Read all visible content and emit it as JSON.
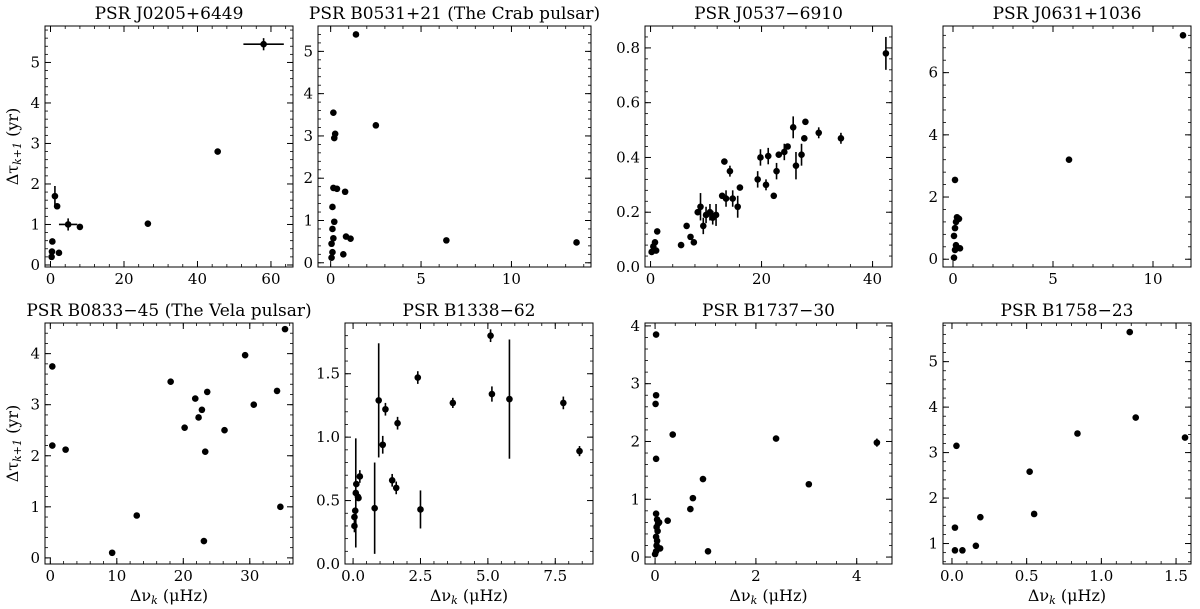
{
  "chart_data": [
    {
      "type": "scatter",
      "title": "PSR J0205+6449",
      "xlabel": "",
      "ylabel": "Δτ_{k+1} (yr)",
      "xlim": [
        -1.5,
        66
      ],
      "ylim": [
        -0.05,
        5.9
      ],
      "xticks": [
        0,
        20,
        40,
        60
      ],
      "xtick_labels": [
        "0",
        "20",
        "40",
        "60"
      ],
      "yticks": [
        0,
        1,
        2,
        3,
        4,
        5
      ],
      "ytick_labels": [
        "0",
        "1",
        "2",
        "3",
        "4",
        "5"
      ],
      "points": [
        {
          "x": 0.3,
          "y": 0.2
        },
        {
          "x": 0.4,
          "y": 0.33
        },
        {
          "x": 0.5,
          "y": 0.58
        },
        {
          "x": 1.2,
          "y": 1.7,
          "yerr": 0.25
        },
        {
          "x": 1.8,
          "y": 1.45
        },
        {
          "x": 2.3,
          "y": 0.3
        },
        {
          "x": 4.8,
          "y": 1.0,
          "xerr": 2.5,
          "yerr": 0.15
        },
        {
          "x": 8.0,
          "y": 0.94
        },
        {
          "x": 26.5,
          "y": 1.02
        },
        {
          "x": 45.5,
          "y": 2.8
        },
        {
          "x": 58.0,
          "y": 5.45,
          "xerr": 5.5,
          "yerr": 0.15
        }
      ]
    },
    {
      "type": "scatter",
      "title": "PSR B0531+21 (The Crab pulsar)",
      "xlabel": "",
      "ylabel": "",
      "xlim": [
        -0.7,
        14.4
      ],
      "ylim": [
        -0.1,
        5.6
      ],
      "xticks": [
        0,
        5,
        10
      ],
      "xtick_labels": [
        "0",
        "5",
        "10"
      ],
      "yticks": [
        0,
        1,
        2,
        3,
        4,
        5
      ],
      "ytick_labels": [
        "0",
        "1",
        "2",
        "3",
        "4",
        "5"
      ],
      "points": [
        {
          "x": 0.05,
          "y": 0.12
        },
        {
          "x": 0.1,
          "y": 0.25
        },
        {
          "x": 0.05,
          "y": 0.45
        },
        {
          "x": 0.15,
          "y": 0.58
        },
        {
          "x": 0.1,
          "y": 0.8
        },
        {
          "x": 0.2,
          "y": 0.97
        },
        {
          "x": 0.1,
          "y": 1.32
        },
        {
          "x": 0.15,
          "y": 1.77
        },
        {
          "x": 0.35,
          "y": 1.75
        },
        {
          "x": 0.2,
          "y": 2.95
        },
        {
          "x": 0.25,
          "y": 3.05
        },
        {
          "x": 0.15,
          "y": 3.55
        },
        {
          "x": 0.7,
          "y": 0.2
        },
        {
          "x": 0.8,
          "y": 1.68
        },
        {
          "x": 0.85,
          "y": 0.62
        },
        {
          "x": 1.1,
          "y": 0.57
        },
        {
          "x": 1.4,
          "y": 5.4
        },
        {
          "x": 2.5,
          "y": 3.25
        },
        {
          "x": 6.4,
          "y": 0.53
        },
        {
          "x": 13.6,
          "y": 0.48
        }
      ]
    },
    {
      "type": "scatter",
      "title": "PSR J0537−6910",
      "xlabel": "",
      "ylabel": "",
      "xlim": [
        -1,
        43.5
      ],
      "ylim": [
        0,
        0.88
      ],
      "xticks": [
        0,
        20,
        40
      ],
      "xtick_labels": [
        "0",
        "20",
        "40"
      ],
      "yticks": [
        0,
        0.2,
        0.4,
        0.6,
        0.8
      ],
      "ytick_labels": [
        "0.0",
        "0.2",
        "0.4",
        "0.6",
        "0.8"
      ],
      "points": [
        {
          "x": 0.2,
          "y": 0.055
        },
        {
          "x": 0.5,
          "y": 0.075
        },
        {
          "x": 0.8,
          "y": 0.09
        },
        {
          "x": 1.0,
          "y": 0.06
        },
        {
          "x": 1.2,
          "y": 0.13
        },
        {
          "x": 5.5,
          "y": 0.08
        },
        {
          "x": 6.5,
          "y": 0.15
        },
        {
          "x": 7.2,
          "y": 0.11
        },
        {
          "x": 7.8,
          "y": 0.09
        },
        {
          "x": 8.5,
          "y": 0.2
        },
        {
          "x": 9.0,
          "y": 0.22,
          "yerr": 0.05
        },
        {
          "x": 9.5,
          "y": 0.15,
          "yerr": 0.03
        },
        {
          "x": 10.0,
          "y": 0.19,
          "yerr": 0.03
        },
        {
          "x": 10.7,
          "y": 0.2,
          "yerr": 0.03
        },
        {
          "x": 11.2,
          "y": 0.18,
          "yerr": 0.025
        },
        {
          "x": 11.8,
          "y": 0.19,
          "yerr": 0.04
        },
        {
          "x": 12.9,
          "y": 0.26
        },
        {
          "x": 13.3,
          "y": 0.385
        },
        {
          "x": 13.6,
          "y": 0.25,
          "yerr": 0.03
        },
        {
          "x": 14.3,
          "y": 0.35,
          "yerr": 0.02
        },
        {
          "x": 14.8,
          "y": 0.25,
          "yerr": 0.03
        },
        {
          "x": 15.7,
          "y": 0.22,
          "yerr": 0.04
        },
        {
          "x": 16.1,
          "y": 0.29
        },
        {
          "x": 19.3,
          "y": 0.32,
          "yerr": 0.03
        },
        {
          "x": 19.8,
          "y": 0.4,
          "yerr": 0.03
        },
        {
          "x": 20.8,
          "y": 0.3,
          "yerr": 0.02
        },
        {
          "x": 21.2,
          "y": 0.405,
          "yerr": 0.03
        },
        {
          "x": 22.2,
          "y": 0.26
        },
        {
          "x": 22.7,
          "y": 0.35,
          "yerr": 0.03
        },
        {
          "x": 23.1,
          "y": 0.41
        },
        {
          "x": 24.1,
          "y": 0.42,
          "yerr": 0.03
        },
        {
          "x": 24.7,
          "y": 0.44
        },
        {
          "x": 25.7,
          "y": 0.51,
          "yerr": 0.04
        },
        {
          "x": 26.2,
          "y": 0.37,
          "yerr": 0.05
        },
        {
          "x": 27.2,
          "y": 0.41,
          "yerr": 0.04
        },
        {
          "x": 27.7,
          "y": 0.47
        },
        {
          "x": 27.9,
          "y": 0.53
        },
        {
          "x": 30.3,
          "y": 0.49,
          "yerr": 0.02
        },
        {
          "x": 34.3,
          "y": 0.47,
          "yerr": 0.02
        },
        {
          "x": 42.4,
          "y": 0.78,
          "yerr": 0.06
        }
      ]
    },
    {
      "type": "scatter",
      "title": "PSR J0631+1036",
      "xlabel": "",
      "ylabel": "",
      "xlim": [
        -0.5,
        11.9
      ],
      "ylim": [
        -0.25,
        7.5
      ],
      "xticks": [
        0,
        5,
        10
      ],
      "xtick_labels": [
        "0",
        "5",
        "10"
      ],
      "yticks": [
        0,
        2,
        4,
        6
      ],
      "ytick_labels": [
        "0",
        "2",
        "4",
        "6"
      ],
      "points": [
        {
          "x": 0.05,
          "y": 0.05
        },
        {
          "x": 0.1,
          "y": 0.3
        },
        {
          "x": 0.15,
          "y": 0.45
        },
        {
          "x": 0.05,
          "y": 0.75
        },
        {
          "x": 0.1,
          "y": 1.0
        },
        {
          "x": 0.15,
          "y": 1.2
        },
        {
          "x": 0.2,
          "y": 1.35
        },
        {
          "x": 0.3,
          "y": 1.3
        },
        {
          "x": 0.35,
          "y": 0.35
        },
        {
          "x": 0.1,
          "y": 2.55
        },
        {
          "x": 5.8,
          "y": 3.2
        },
        {
          "x": 11.5,
          "y": 7.2
        }
      ]
    },
    {
      "type": "scatter",
      "title": "PSR B0833−45 (The Vela pulsar)",
      "xlabel": "Δν_k (μHz)",
      "ylabel": "Δτ_{k+1} (yr)",
      "xlim": [
        -0.8,
        36.5
      ],
      "ylim": [
        -0.12,
        4.6
      ],
      "xticks": [
        0,
        10,
        20,
        30
      ],
      "xtick_labels": [
        "0",
        "10",
        "20",
        "30"
      ],
      "yticks": [
        0,
        1,
        2,
        3,
        4
      ],
      "ytick_labels": [
        "0",
        "1",
        "2",
        "3",
        "4"
      ],
      "points": [
        {
          "x": 0.3,
          "y": 3.75
        },
        {
          "x": 0.3,
          "y": 2.2
        },
        {
          "x": 2.3,
          "y": 2.12
        },
        {
          "x": 9.3,
          "y": 0.1
        },
        {
          "x": 13.0,
          "y": 0.83
        },
        {
          "x": 18.1,
          "y": 3.45
        },
        {
          "x": 20.2,
          "y": 2.55
        },
        {
          "x": 21.8,
          "y": 3.12
        },
        {
          "x": 22.3,
          "y": 2.75
        },
        {
          "x": 22.8,
          "y": 2.9
        },
        {
          "x": 23.1,
          "y": 0.33
        },
        {
          "x": 23.6,
          "y": 3.25
        },
        {
          "x": 23.3,
          "y": 2.08
        },
        {
          "x": 26.2,
          "y": 2.5
        },
        {
          "x": 29.3,
          "y": 3.97
        },
        {
          "x": 30.6,
          "y": 3.0
        },
        {
          "x": 34.1,
          "y": 3.27
        },
        {
          "x": 34.6,
          "y": 1.0
        },
        {
          "x": 35.3,
          "y": 4.48
        }
      ]
    },
    {
      "type": "scatter",
      "title": "PSR B1338−62",
      "xlabel": "Δν_k (μHz)",
      "ylabel": "",
      "xlim": [
        -0.3,
        8.9
      ],
      "ylim": [
        0,
        1.9
      ],
      "xticks": [
        0,
        2.5,
        5,
        7.5
      ],
      "xtick_labels": [
        "0.0",
        "2.5",
        "5.0",
        "7.5"
      ],
      "yticks": [
        0,
        0.5,
        1.0,
        1.5
      ],
      "ytick_labels": [
        "0.0",
        "0.5",
        "1.0",
        "1.5"
      ],
      "points": [
        {
          "x": 0.05,
          "y": 0.3,
          "yerr": 0.05
        },
        {
          "x": 0.05,
          "y": 0.37
        },
        {
          "x": 0.08,
          "y": 0.42
        },
        {
          "x": 0.1,
          "y": 0.56,
          "yerr": 0.43
        },
        {
          "x": 0.12,
          "y": 0.63
        },
        {
          "x": 0.18,
          "y": 0.53
        },
        {
          "x": 0.2,
          "y": 0.52
        },
        {
          "x": 0.25,
          "y": 0.69,
          "yerr": 0.05
        },
        {
          "x": 0.8,
          "y": 0.44,
          "yerr": 0.36
        },
        {
          "x": 0.95,
          "y": 1.29,
          "yerr": 0.45
        },
        {
          "x": 1.1,
          "y": 0.94,
          "yerr": 0.07
        },
        {
          "x": 1.2,
          "y": 1.22,
          "yerr": 0.05
        },
        {
          "x": 1.45,
          "y": 0.66,
          "yerr": 0.05
        },
        {
          "x": 1.6,
          "y": 0.6,
          "yerr": 0.05
        },
        {
          "x": 1.65,
          "y": 1.11,
          "yerr": 0.05
        },
        {
          "x": 2.4,
          "y": 1.47,
          "yerr": 0.05
        },
        {
          "x": 2.5,
          "y": 0.43,
          "yerr": 0.15
        },
        {
          "x": 3.7,
          "y": 1.27,
          "yerr": 0.04
        },
        {
          "x": 5.1,
          "y": 1.8,
          "yerr": 0.05
        },
        {
          "x": 5.15,
          "y": 1.34,
          "yerr": 0.06
        },
        {
          "x": 5.8,
          "y": 1.3,
          "yerr": 0.47
        },
        {
          "x": 7.8,
          "y": 1.27,
          "yerr": 0.05
        },
        {
          "x": 8.4,
          "y": 0.89,
          "yerr": 0.04
        }
      ]
    },
    {
      "type": "scatter",
      "title": "PSR B1737−30",
      "xlabel": "Δν_k (μHz)",
      "ylabel": "",
      "xlim": [
        -0.2,
        4.7
      ],
      "ylim": [
        -0.12,
        4.05
      ],
      "xticks": [
        0,
        2,
        4
      ],
      "xtick_labels": [
        "0",
        "2",
        "4"
      ],
      "yticks": [
        0,
        1,
        2,
        3,
        4
      ],
      "ytick_labels": [
        "0",
        "1",
        "2",
        "3",
        "4"
      ],
      "points": [
        {
          "x": 0.0,
          "y": 0.05
        },
        {
          "x": 0.02,
          "y": 0.1
        },
        {
          "x": 0.03,
          "y": 0.2
        },
        {
          "x": 0.04,
          "y": 0.28
        },
        {
          "x": 0.02,
          "y": 0.35
        },
        {
          "x": 0.05,
          "y": 0.45
        },
        {
          "x": 0.03,
          "y": 0.52
        },
        {
          "x": 0.06,
          "y": 0.58
        },
        {
          "x": 0.04,
          "y": 0.65
        },
        {
          "x": 0.02,
          "y": 0.75
        },
        {
          "x": 0.08,
          "y": 0.6
        },
        {
          "x": 0.1,
          "y": 0.15
        },
        {
          "x": 0.02,
          "y": 1.7
        },
        {
          "x": 0.01,
          "y": 2.65
        },
        {
          "x": 0.02,
          "y": 2.8
        },
        {
          "x": 0.02,
          "y": 3.85
        },
        {
          "x": 0.25,
          "y": 0.63
        },
        {
          "x": 0.35,
          "y": 2.12
        },
        {
          "x": 0.7,
          "y": 0.83
        },
        {
          "x": 0.75,
          "y": 1.02
        },
        {
          "x": 0.95,
          "y": 1.35
        },
        {
          "x": 1.05,
          "y": 0.1
        },
        {
          "x": 2.4,
          "y": 2.05
        },
        {
          "x": 3.05,
          "y": 1.26
        },
        {
          "x": 4.4,
          "y": 1.98,
          "yerr": 0.07
        }
      ]
    },
    {
      "type": "scatter",
      "title": "PSR B1758−23",
      "xlabel": "Δν_k (μHz)",
      "ylabel": "",
      "xlim": [
        -0.06,
        1.6
      ],
      "ylim": [
        0.55,
        5.85
      ],
      "xticks": [
        0,
        0.5,
        1.0,
        1.5
      ],
      "xtick_labels": [
        "0.0",
        "0.5",
        "1.0",
        "1.5"
      ],
      "yticks": [
        1,
        2,
        3,
        4,
        5
      ],
      "ytick_labels": [
        "1",
        "2",
        "3",
        "4",
        "5"
      ],
      "points": [
        {
          "x": 0.02,
          "y": 0.85
        },
        {
          "x": 0.02,
          "y": 1.35
        },
        {
          "x": 0.03,
          "y": 3.15
        },
        {
          "x": 0.07,
          "y": 0.85
        },
        {
          "x": 0.16,
          "y": 0.95
        },
        {
          "x": 0.19,
          "y": 1.58
        },
        {
          "x": 0.52,
          "y": 2.58,
          "yerr": 0.05
        },
        {
          "x": 0.55,
          "y": 1.65
        },
        {
          "x": 0.84,
          "y": 3.42
        },
        {
          "x": 1.19,
          "y": 5.65
        },
        {
          "x": 1.23,
          "y": 3.77
        },
        {
          "x": 1.56,
          "y": 3.33
        }
      ]
    }
  ]
}
